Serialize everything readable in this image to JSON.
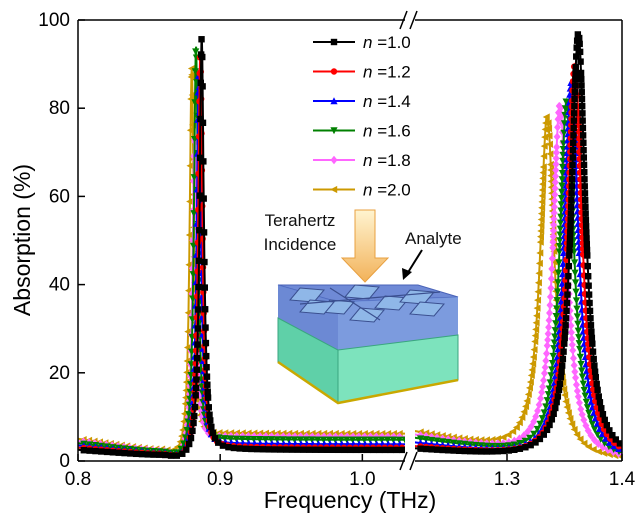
{
  "chart_data": {
    "type": "line",
    "xlabel": "Frequency (THz)",
    "ylabel": "Absorption (%)",
    "ylim": [
      0,
      100
    ],
    "y_ticks": [
      "0",
      "20",
      "40",
      "60",
      "80",
      "100"
    ],
    "x_axis_broken": true,
    "x_segments": [
      {
        "xlim": [
          0.8,
          1.03
        ],
        "ticks": [
          "0.8",
          "0.9",
          "1.0"
        ],
        "tick_values": [
          0.8,
          0.9,
          1.0
        ]
      },
      {
        "xlim": [
          1.22,
          1.4
        ],
        "ticks": [
          "1.3",
          "1.4"
        ],
        "tick_values": [
          1.3,
          1.4
        ]
      }
    ],
    "legend_position": "top-center",
    "series": [
      {
        "name": "n =1.0",
        "legend_var": "n",
        "legend_val": " =1.0",
        "color": "#000000",
        "marker": "square",
        "peak1": {
          "f": 0.887,
          "a": 96
        },
        "peak2": {
          "f": 1.362,
          "a": 97
        },
        "edge_left": 2.5,
        "mid": 2.5
      },
      {
        "name": "n =1.2",
        "legend_var": "n",
        "legend_val": " =1.2",
        "color": "#ff0000",
        "marker": "circle",
        "peak1": {
          "f": 0.886,
          "a": 92
        },
        "peak2": {
          "f": 1.359,
          "a": 90
        },
        "edge_left": 3.0,
        "mid": 3.0
      },
      {
        "name": "n =1.4",
        "legend_var": "n",
        "legend_val": " =1.4",
        "color": "#0000ff",
        "marker": "triangle-up",
        "peak1": {
          "f": 0.885,
          "a": 88
        },
        "peak2": {
          "f": 1.356,
          "a": 86
        },
        "edge_left": 3.5,
        "mid": 3.8
      },
      {
        "name": "n =1.6",
        "legend_var": "n",
        "legend_val": " =1.6",
        "color": "#008000",
        "marker": "triangle-down",
        "peak1": {
          "f": 0.883,
          "a": 94
        },
        "peak2": {
          "f": 1.352,
          "a": 82
        },
        "edge_left": 4.0,
        "mid": 4.8
      },
      {
        "name": "n =1.8",
        "legend_var": "n",
        "legend_val": " =1.8",
        "color": "#ff66ff",
        "marker": "diamond",
        "peak1": {
          "f": 0.882,
          "a": 74
        },
        "peak2": {
          "f": 1.346,
          "a": 81
        },
        "edge_left": 4.5,
        "mid": 5.5
      },
      {
        "name": "n =2.0",
        "legend_var": "n",
        "legend_val": " =2.0",
        "color": "#cc9900",
        "marker": "triangle-left",
        "peak1": {
          "f": 0.88,
          "a": 89
        },
        "peak2": {
          "f": 1.335,
          "a": 78
        },
        "edge_left": 5.0,
        "mid": 6.2
      }
    ]
  },
  "inset": {
    "incidence_line1": "Terahertz",
    "incidence_line2": "Incidence",
    "analyte_label": "Analyte"
  }
}
